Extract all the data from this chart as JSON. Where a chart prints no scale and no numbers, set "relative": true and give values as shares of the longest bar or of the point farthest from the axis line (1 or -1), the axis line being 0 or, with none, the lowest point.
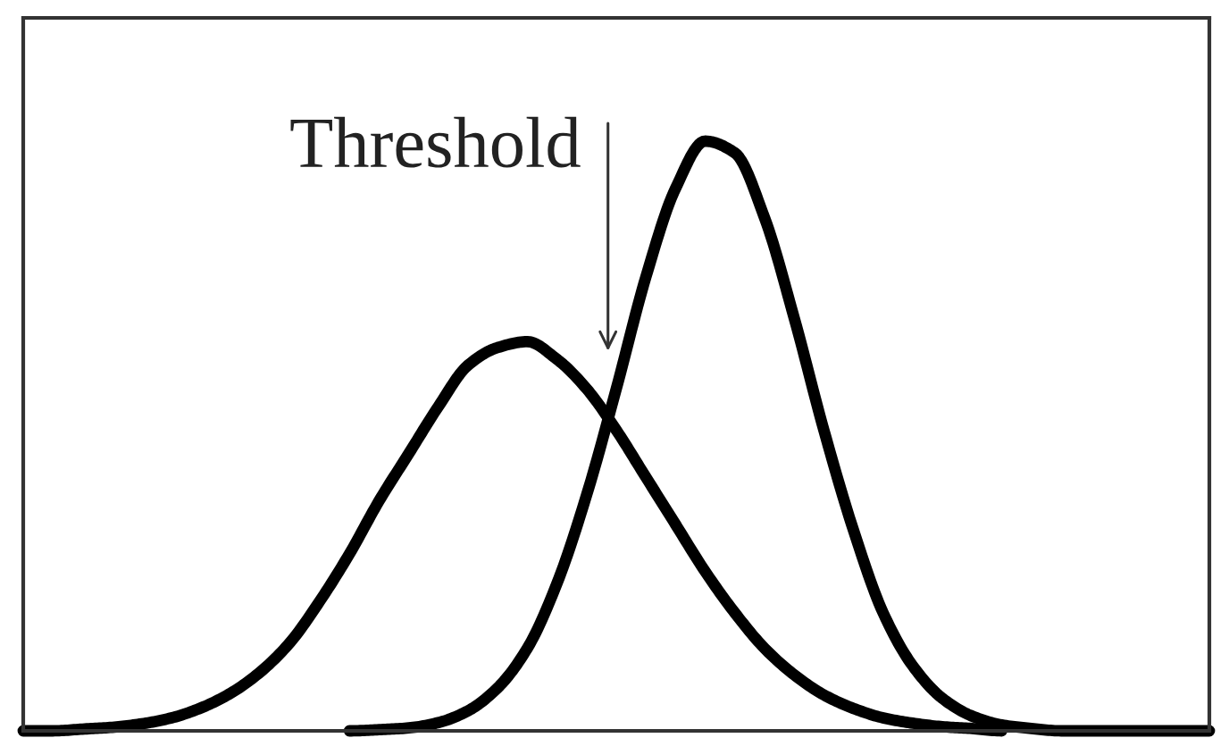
{
  "chart_data": {
    "type": "line",
    "relative": true,
    "annotations": [
      "Threshold"
    ],
    "categories": [
      null,
      null,
      null,
      null,
      null,
      null,
      null,
      null,
      null,
      null,
      null,
      null,
      null,
      null,
      null,
      null,
      null,
      null,
      null,
      null,
      null,
      null,
      null,
      null,
      null,
      null,
      null,
      null,
      null,
      null,
      null,
      null,
      null,
      null,
      null,
      null,
      null,
      null,
      null,
      null,
      null
    ],
    "series": [
      {
        "color": "#000000",
        "values": [
          0,
          0,
          0.003,
          0.006,
          0.012,
          0.022,
          0.039,
          0.064,
          0.1,
          0.15,
          0.22,
          0.3,
          0.39,
          0.47,
          0.55,
          0.62,
          0.65,
          0.66,
          0.63,
          0.58,
          0.51,
          0.43,
          0.35,
          0.27,
          0.2,
          0.14,
          0.095,
          0.061,
          0.038,
          0.022,
          0.013,
          0.007,
          0.004,
          0,
          null,
          null,
          null,
          null,
          null,
          null,
          null
        ]
      },
      {
        "color": "#000000",
        "values": [
          null,
          null,
          null,
          null,
          null,
          null,
          null,
          null,
          null,
          null,
          null,
          0,
          0.002,
          0.005,
          0.014,
          0.034,
          0.073,
          0.14,
          0.25,
          0.4,
          0.58,
          0.77,
          0.92,
          1.0,
          0.98,
          0.87,
          0.7,
          0.51,
          0.34,
          0.2,
          0.11,
          0.055,
          0.025,
          0.01,
          0.004,
          0,
          0,
          0,
          0,
          0,
          0
        ]
      }
    ]
  }
}
